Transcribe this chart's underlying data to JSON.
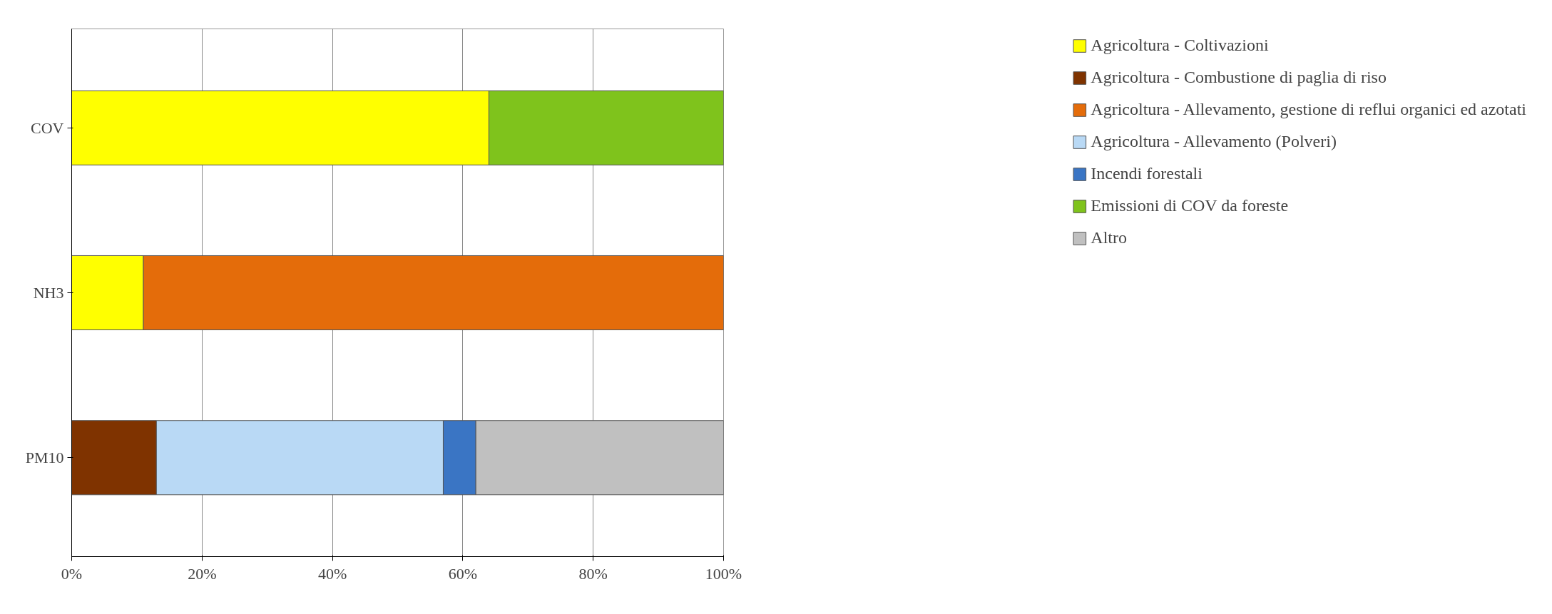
{
  "chart_data": {
    "type": "bar",
    "orientation": "horizontal",
    "stacked": true,
    "categories": [
      "COV",
      "NH3",
      "PM10"
    ],
    "series": [
      {
        "name": "Agricoltura - Coltivazioni",
        "color": "#ffff00",
        "values": [
          64,
          11,
          null
        ]
      },
      {
        "name": "Agricoltura - Combustione di paglia di riso",
        "color": "#7f3300",
        "values": [
          null,
          null,
          13
        ]
      },
      {
        "name": "Agricoltura - Allevamento, gestione di reflui organici ed azotati",
        "color": "#e46c0a",
        "values": [
          null,
          89,
          null
        ]
      },
      {
        "name": "Agricoltura - Allevamento (Polveri)",
        "color": "#b9d9f5",
        "values": [
          null,
          null,
          44
        ]
      },
      {
        "name": "Incendi forestali",
        "color": "#3a75c4",
        "values": [
          null,
          null,
          5
        ]
      },
      {
        "name": "Emissioni di COV da foreste",
        "color": "#7fc31c",
        "values": [
          36,
          null,
          null
        ]
      },
      {
        "name": "Altro",
        "color": "#c0c0c0",
        "values": [
          null,
          null,
          38
        ]
      }
    ],
    "xlim": [
      0,
      100
    ],
    "xticks": [
      {
        "value": 0,
        "label": "0%"
      },
      {
        "value": 20,
        "label": "20%"
      },
      {
        "value": 40,
        "label": "40%"
      },
      {
        "value": 60,
        "label": "60%"
      },
      {
        "value": 80,
        "label": "80%"
      },
      {
        "value": 100,
        "label": "100%"
      }
    ],
    "grid": "x",
    "legend": "right"
  }
}
